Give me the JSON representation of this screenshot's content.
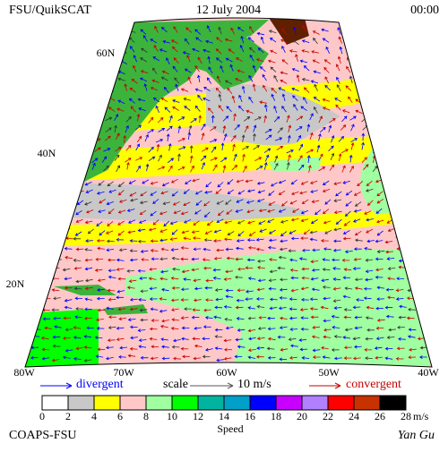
{
  "header": {
    "left": "FSU/QuikSCAT",
    "center": "12 July 2004",
    "right": "00:00"
  },
  "latitude_labels": [
    "60N",
    "40N",
    "20N"
  ],
  "longitude_labels": [
    "80W",
    "70W",
    "60W",
    "50W",
    "40W"
  ],
  "legend": {
    "divergent": "divergent",
    "scale": "scale",
    "scale_value": "10 m/s",
    "convergent": "convergent"
  },
  "colorbar": {
    "ticks": [
      0,
      2,
      4,
      6,
      8,
      10,
      12,
      14,
      16,
      18,
      20,
      22,
      24,
      26,
      28
    ],
    "unit": "m/s",
    "label": "Speed",
    "colors": [
      "#ffffff",
      "#c8c8c8",
      "#ffff00",
      "#ffc8c8",
      "#a0ffa0",
      "#00ff00",
      "#00b4a0",
      "#00a0c8",
      "#0000ff",
      "#c800ff",
      "#b080ff",
      "#ff0000",
      "#c83200",
      "#000000"
    ]
  },
  "footer": {
    "left": "COAPS-FSU",
    "right": "Yan Gu"
  }
}
